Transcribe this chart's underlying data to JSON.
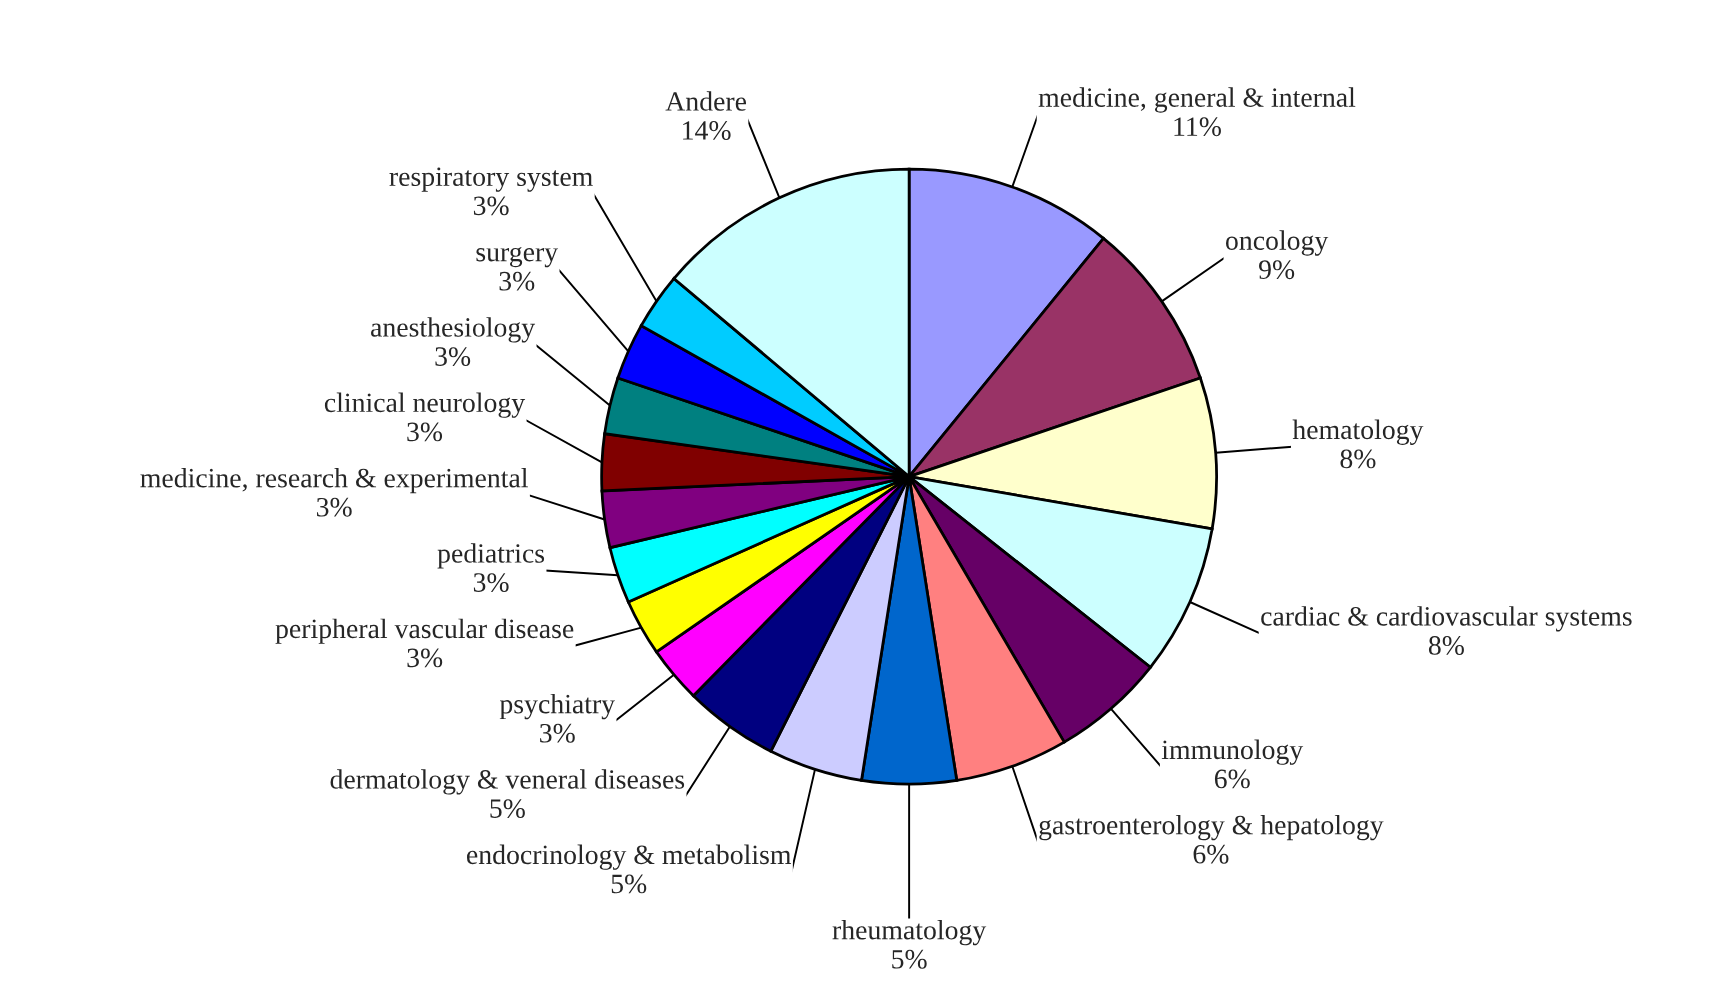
{
  "chart_data": {
    "type": "pie",
    "categories": [
      "medicine, general & internal",
      "oncology",
      "hematology",
      "cardiac & cardiovascular systems",
      "immunology",
      "gastroenterology & hepatology",
      "rheumatology",
      "endocrinology & metabolism",
      "dermatology & veneral diseases",
      "psychiatry",
      "peripheral vascular disease",
      "pediatrics",
      "medicine, research & experimental",
      "clinical neurology",
      "anesthesiology",
      "surgery",
      "respiratory system",
      "Andere"
    ],
    "values": [
      11,
      9,
      8,
      8,
      6,
      6,
      5,
      5,
      5,
      3,
      3,
      3,
      3,
      3,
      3,
      3,
      3,
      14
    ],
    "value_labels": [
      "11%",
      "9%",
      "8%",
      "8%",
      "6%",
      "6%",
      "5%",
      "5%",
      "5%",
      "3%",
      "3%",
      "3%",
      "3%",
      "3%",
      "3%",
      "3%",
      "3%",
      "14%"
    ],
    "colors": [
      "#9999ff",
      "#993366",
      "#ffffcc",
      "#ccffff",
      "#660066",
      "#ff8080",
      "#0066cc",
      "#ccccff",
      "#000080",
      "#ff00ff",
      "#ffff00",
      "#00ffff",
      "#800080",
      "#800000",
      "#008080",
      "#0000ff",
      "#00ccff",
      "#ccffff"
    ]
  }
}
